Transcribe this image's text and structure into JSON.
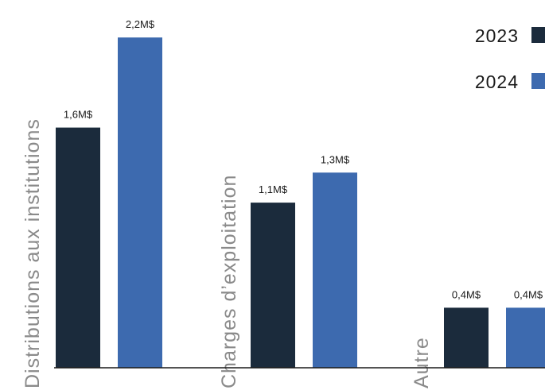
{
  "chart_data": {
    "type": "bar",
    "categories": [
      "Distributions aux institutions",
      "Charges d’exploitation",
      "Autre"
    ],
    "series": [
      {
        "name": "2023",
        "color": "#1b2b3c",
        "values": [
          1.6,
          1.1,
          0.4
        ],
        "labels": [
          "1,6M$",
          "1,1M$",
          "0,4M$"
        ]
      },
      {
        "name": "2024",
        "color": "#3d6aaf",
        "values": [
          2.2,
          1.3,
          0.4
        ],
        "labels": [
          "2,2M$",
          "1,3M$",
          "0,4M$"
        ]
      }
    ],
    "ylim": [
      0,
      2.4
    ],
    "grid": false,
    "legend": "top-right"
  }
}
